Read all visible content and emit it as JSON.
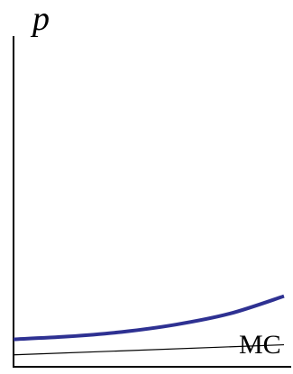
{
  "chart_data": {
    "type": "line",
    "ylabel": "p",
    "xlabel": "",
    "grid": false,
    "series": [
      {
        "name": "",
        "color": "#2e3192",
        "x": [
          0,
          20,
          40,
          60,
          80,
          100
        ],
        "y": [
          30,
          33,
          38,
          46,
          58,
          77
        ]
      },
      {
        "name": "MC",
        "color": "#000000",
        "x": [
          0,
          100
        ],
        "y": [
          13,
          24
        ]
      }
    ],
    "annotations": [
      {
        "text": "MC",
        "series": "MC"
      }
    ],
    "xlim": [
      0,
      110
    ],
    "ylim": [
      0,
      400
    ]
  }
}
